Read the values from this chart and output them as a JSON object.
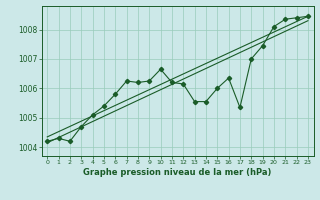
{
  "title": "Graphe pression niveau de la mer (hPa)",
  "bg_color": "#cce8e8",
  "grid_color": "#99ccbb",
  "line_color": "#1a5c28",
  "xlim": [
    -0.5,
    23.5
  ],
  "ylim": [
    1003.7,
    1008.8
  ],
  "yticks": [
    1004,
    1005,
    1006,
    1007,
    1008
  ],
  "xticks": [
    0,
    1,
    2,
    3,
    4,
    5,
    6,
    7,
    8,
    9,
    10,
    11,
    12,
    13,
    14,
    15,
    16,
    17,
    18,
    19,
    20,
    21,
    22,
    23
  ],
  "series1_x": [
    0,
    1,
    2,
    3,
    4,
    5,
    6,
    7,
    8,
    9,
    10,
    11,
    12,
    13,
    14,
    15,
    16,
    17,
    18,
    19,
    20,
    21,
    22,
    23
  ],
  "series1_y": [
    1004.2,
    1004.3,
    1004.2,
    1004.7,
    1005.1,
    1005.4,
    1005.8,
    1006.25,
    1006.2,
    1006.25,
    1006.65,
    1006.2,
    1006.15,
    1005.55,
    1005.55,
    1006.0,
    1006.35,
    1005.35,
    1007.0,
    1007.45,
    1008.1,
    1008.35,
    1008.4,
    1008.45
  ],
  "trend1_x": [
    0,
    23
  ],
  "trend1_y": [
    1004.15,
    1008.3
  ],
  "trend2_x": [
    0,
    23
  ],
  "trend2_y": [
    1004.35,
    1008.45
  ]
}
